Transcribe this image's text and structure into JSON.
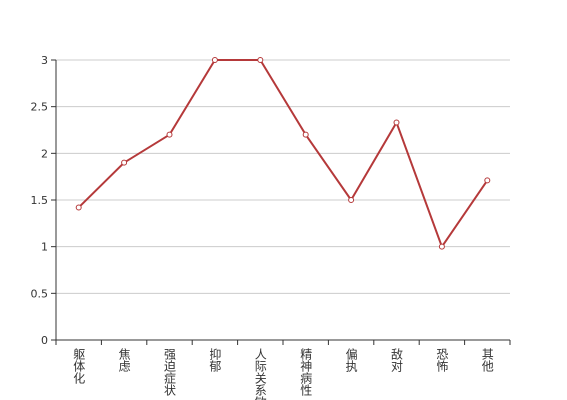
{
  "chart_data": {
    "type": "line",
    "categories": [
      "躯体化",
      "焦虑",
      "强迫症状",
      "抑郁",
      "人际关系敏感",
      "精神病性",
      "偏执",
      "敌对",
      "恐怖",
      "其他"
    ],
    "series": [
      {
        "color": "#b5393a",
        "values": [
          1.42,
          1.9,
          2.2,
          3,
          3,
          2.2,
          1.5,
          2.33,
          1,
          1.71
        ]
      }
    ],
    "ylim": [
      0,
      3
    ],
    "yticks": [
      0,
      0.5,
      1,
      1.5,
      2,
      2.5,
      3
    ],
    "grid": true
  }
}
